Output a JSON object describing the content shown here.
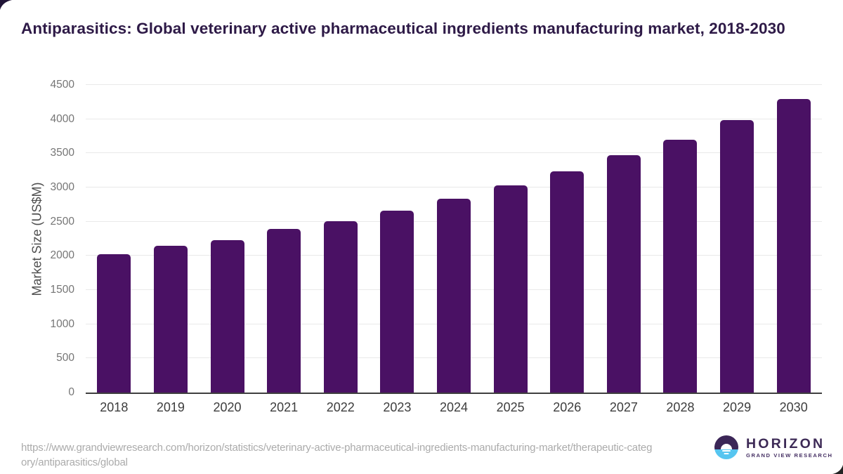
{
  "page": {
    "title": "Antiparasitics: Global veterinary active pharmaceutical ingredients manufacturing market, 2018-2030"
  },
  "chart_data": {
    "type": "bar",
    "title": "Antiparasitics: Global veterinary active pharmaceutical ingredients manufacturing market, 2018-2030",
    "categories": [
      "2018",
      "2019",
      "2020",
      "2021",
      "2022",
      "2023",
      "2024",
      "2025",
      "2026",
      "2027",
      "2028",
      "2029",
      "2030"
    ],
    "values": [
      2020,
      2150,
      2230,
      2390,
      2510,
      2660,
      2840,
      3030,
      3240,
      3470,
      3700,
      3990,
      4300
    ],
    "xlabel": "",
    "ylabel": "Market Size (US$M)",
    "ylim": [
      0,
      4500
    ],
    "yticks": [
      0,
      500,
      1000,
      1500,
      2000,
      2500,
      3000,
      3500,
      4000,
      4500
    ],
    "grid": "horizontal",
    "legend": false,
    "bar_color": "#4a1164"
  },
  "footer": {
    "url_line_1": "https://www.grandviewresearch.com/horizon/statistics/veterinary-active-pharmaceutical-ingredients-manufacturing-market/therap",
    "url_line_2": "eutic-category/antiparasitics/global",
    "logo": {
      "name": "HORIZON",
      "tagline": "GRAND VIEW RESEARCH"
    }
  },
  "colors": {
    "bar": "#4a1164",
    "title_text": "#2e1a47",
    "axis_line": "#3f3f3f",
    "gridline": "#e9e9e9",
    "y_tick_label": "#757575",
    "x_tick_label": "#3d3d3d",
    "logo_purple": "#3b2657",
    "logo_blue": "#56c5f0"
  }
}
